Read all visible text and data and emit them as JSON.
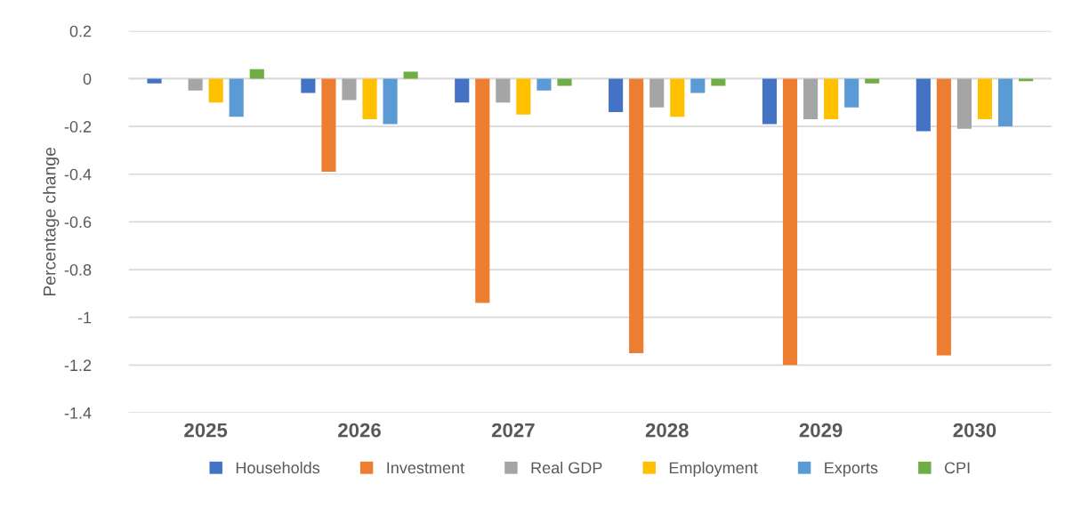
{
  "chart_data": {
    "type": "bar",
    "ylabel": "Percentage change",
    "categories": [
      "2025",
      "2026",
      "2027",
      "2028",
      "2029",
      "2030"
    ],
    "series": [
      {
        "name": "Households",
        "color": "#4472c4",
        "values": [
          -0.02,
          -0.06,
          -0.1,
          -0.14,
          -0.19,
          -0.22
        ]
      },
      {
        "name": "Investment",
        "color": "#ed7d31",
        "values": [
          0,
          -0.39,
          -0.94,
          -1.15,
          -1.2,
          -1.16
        ]
      },
      {
        "name": "Real GDP",
        "color": "#a5a5a5",
        "values": [
          -0.05,
          -0.09,
          -0.1,
          -0.12,
          -0.17,
          -0.21
        ]
      },
      {
        "name": "Employment",
        "color": "#ffc000",
        "values": [
          -0.1,
          -0.17,
          -0.15,
          -0.16,
          -0.17,
          -0.17
        ]
      },
      {
        "name": "Exports",
        "color": "#5b9bd5",
        "values": [
          -0.16,
          -0.19,
          -0.05,
          -0.06,
          -0.12,
          -0.2
        ]
      },
      {
        "name": "CPI",
        "color": "#70ad47",
        "values": [
          0.04,
          0.03,
          -0.03,
          -0.03,
          -0.02,
          -0.01
        ]
      }
    ],
    "ylim": [
      -1.4,
      0.2
    ],
    "yticks": [
      {
        "value": 0.2,
        "label": "0.2"
      },
      {
        "value": 0,
        "label": "0"
      },
      {
        "value": -0.2,
        "label": "-0.2"
      },
      {
        "value": -0.4,
        "label": "-0.4"
      },
      {
        "value": -0.6,
        "label": "-0.6"
      },
      {
        "value": -0.8,
        "label": "-0.8"
      },
      {
        "value": -1,
        "label": "-1"
      },
      {
        "value": -1.2,
        "label": "-1.2"
      },
      {
        "value": -1.4,
        "label": "-1.4"
      }
    ],
    "grid": "y",
    "legend": "bottom"
  }
}
